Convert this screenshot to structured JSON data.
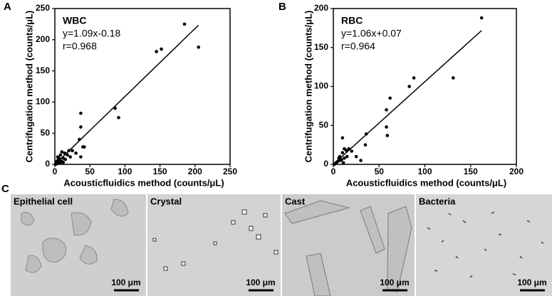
{
  "chart_data": [
    {
      "type": "scatter",
      "panel": "A",
      "annotations": [
        "WBC",
        "y=1.09x-0.18",
        "r=0.968"
      ],
      "x_label": "Acousticfluidics method (counts/μL)",
      "y_label": "Centrifugation method (counts/μL)",
      "xlim": [
        0,
        250
      ],
      "ylim": [
        0,
        250
      ],
      "xticks": [
        0,
        50,
        100,
        150,
        200,
        250
      ],
      "yticks": [
        0,
        50,
        100,
        150,
        200,
        250
      ],
      "color": "#000000",
      "x": [
        205,
        185,
        152,
        145,
        91,
        86,
        37,
        37,
        35,
        40,
        42,
        37,
        25,
        20,
        18,
        12,
        10,
        8,
        5,
        3,
        2,
        5,
        8,
        10,
        12,
        15,
        4,
        6,
        1,
        3,
        7,
        30,
        22,
        14
      ],
      "values": [
        188,
        225,
        185,
        181,
        75,
        90,
        82,
        60,
        40,
        28,
        28,
        12,
        22,
        22,
        15,
        10,
        20,
        15,
        8,
        5,
        2,
        2,
        3,
        5,
        3,
        8,
        12,
        10,
        0,
        1,
        6,
        18,
        12,
        18
      ],
      "fit": {
        "x": [
          0,
          205
        ],
        "y": [
          -0.18,
          223.3
        ]
      }
    },
    {
      "type": "scatter",
      "panel": "B",
      "annotations": [
        "RBC",
        "y=1.06x+0.07",
        "r=0.964"
      ],
      "x_label": "Acousticfluidics method (counts/μL)",
      "y_label": "Centrifugation method (counts/μL)",
      "xlim": [
        0,
        200
      ],
      "ylim": [
        0,
        200
      ],
      "xticks": [
        0,
        50,
        100,
        150,
        200
      ],
      "yticks": [
        0,
        50,
        100,
        150,
        200
      ],
      "color": "#000000",
      "x": [
        162,
        131,
        88,
        83,
        62,
        58,
        58,
        59,
        36,
        35,
        20,
        17,
        14,
        12,
        10,
        10,
        8,
        6,
        4,
        3,
        2,
        5,
        7,
        9,
        12,
        15,
        25,
        30,
        1,
        11
      ],
      "values": [
        188,
        111,
        111,
        100,
        85,
        70,
        48,
        37,
        39,
        25,
        17,
        20,
        18,
        20,
        34,
        15,
        5,
        8,
        3,
        2,
        1,
        4,
        10,
        6,
        8,
        10,
        10,
        5,
        0,
        2
      ],
      "fit": {
        "x": [
          0,
          162
        ],
        "y": [
          0.07,
          171.8
        ]
      }
    }
  ],
  "images": {
    "panel": "C",
    "items": [
      {
        "title": "Epithelial cell",
        "scale_bar": "100 μm"
      },
      {
        "title": "Crystal",
        "scale_bar": "100 μm"
      },
      {
        "title": "Cast",
        "scale_bar": "100 μm"
      },
      {
        "title": "Bacteria",
        "scale_bar": "100 μm"
      }
    ]
  }
}
